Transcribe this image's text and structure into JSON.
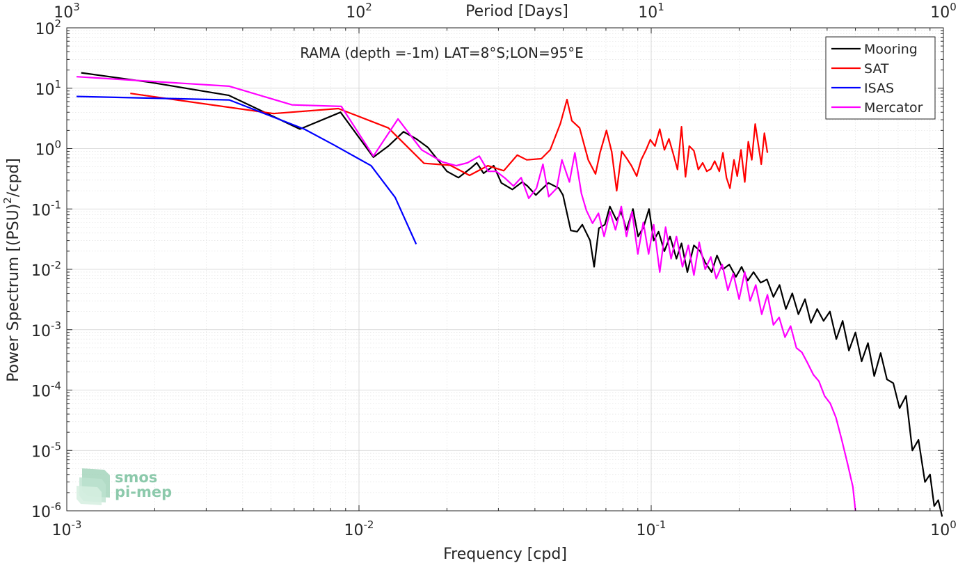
{
  "chart_data": {
    "type": "line",
    "title": "RAMA (depth =-1m) LAT=8°S;LON=95°E",
    "xlabel": "Frequency [cpd]",
    "ylabel": "Power Spectrum [(PSU)²/cpd]",
    "ylabel_parts": [
      "Power Spectrum [(PSU)",
      "2",
      "/cpd]"
    ],
    "top_xlabel": "Period [Days]",
    "xscale": "log",
    "yscale": "log",
    "xlim": [
      0.001,
      1
    ],
    "ylim": [
      1e-06,
      100
    ],
    "grid": true,
    "legend_position": "top-right",
    "x_ticks": [
      {
        "base": "10",
        "exp": "-3",
        "value": 0.001
      },
      {
        "base": "10",
        "exp": "-2",
        "value": 0.01
      },
      {
        "base": "10",
        "exp": "-1",
        "value": 0.1
      },
      {
        "base": "10",
        "exp": "0",
        "value": 1
      }
    ],
    "top_x_ticks": [
      {
        "base": "10",
        "exp": "3",
        "value": 0.001
      },
      {
        "base": "10",
        "exp": "2",
        "value": 0.01
      },
      {
        "base": "10",
        "exp": "1",
        "value": 0.1
      },
      {
        "base": "10",
        "exp": "0",
        "value": 1
      }
    ],
    "y_ticks": [
      {
        "base": "10",
        "exp": "2",
        "value": 100
      },
      {
        "base": "10",
        "exp": "1",
        "value": 10
      },
      {
        "base": "10",
        "exp": "0",
        "value": 1
      },
      {
        "base": "10",
        "exp": "-1",
        "value": 0.1
      },
      {
        "base": "10",
        "exp": "-2",
        "value": 0.01
      },
      {
        "base": "10",
        "exp": "-3",
        "value": 0.001
      },
      {
        "base": "10",
        "exp": "-4",
        "value": 0.0001
      },
      {
        "base": "10",
        "exp": "-5",
        "value": 1e-05
      },
      {
        "base": "10",
        "exp": "-6",
        "value": 1e-06
      }
    ],
    "series": [
      {
        "name": "Mooring",
        "color": "#000000",
        "x": [
          0.00112,
          0.00193,
          0.00359,
          0.00628,
          0.00865,
          0.0112,
          0.0126,
          0.0142,
          0.0157,
          0.0172,
          0.02,
          0.0219,
          0.0242,
          0.0253,
          0.0267,
          0.0289,
          0.0307,
          0.0335,
          0.0362,
          0.0377,
          0.0403,
          0.0421,
          0.0445,
          0.0483,
          0.0499,
          0.0531,
          0.0558,
          0.0581,
          0.0618,
          0.0638,
          0.0662,
          0.0694,
          0.0722,
          0.0761,
          0.079,
          0.0823,
          0.0866,
          0.0902,
          0.0941,
          0.0983,
          0.102,
          0.106,
          0.111,
          0.116,
          0.122,
          0.127,
          0.133,
          0.14,
          0.147,
          0.153,
          0.161,
          0.168,
          0.176,
          0.185,
          0.195,
          0.204,
          0.214,
          0.224,
          0.237,
          0.249,
          0.262,
          0.275,
          0.289,
          0.304,
          0.319,
          0.336,
          0.352,
          0.37,
          0.389,
          0.409,
          0.43,
          0.452,
          0.475,
          0.5,
          0.525,
          0.552,
          0.58,
          0.61,
          0.641,
          0.674,
          0.708,
          0.745,
          0.783,
          0.822,
          0.865,
          0.9,
          0.93,
          0.96,
          0.99
        ],
        "y": [
          18.0,
          12.5,
          7.6,
          2.1,
          4.0,
          0.72,
          1.1,
          1.9,
          1.45,
          1.05,
          0.42,
          0.33,
          0.48,
          0.58,
          0.39,
          0.52,
          0.27,
          0.21,
          0.28,
          0.24,
          0.17,
          0.21,
          0.27,
          0.22,
          0.17,
          0.044,
          0.042,
          0.055,
          0.03,
          0.011,
          0.048,
          0.055,
          0.11,
          0.065,
          0.09,
          0.045,
          0.1,
          0.035,
          0.05,
          0.1,
          0.03,
          0.042,
          0.02,
          0.035,
          0.015,
          0.027,
          0.009,
          0.025,
          0.02,
          0.013,
          0.009,
          0.017,
          0.01,
          0.012,
          0.0075,
          0.011,
          0.0065,
          0.009,
          0.006,
          0.0068,
          0.0035,
          0.0055,
          0.0022,
          0.004,
          0.0018,
          0.0032,
          0.0013,
          0.0022,
          0.0014,
          0.002,
          0.0007,
          0.0014,
          0.00045,
          0.0009,
          0.0003,
          0.0006,
          0.00017,
          0.00041,
          0.00015,
          0.00013,
          5e-05,
          8e-05,
          1e-05,
          1.5e-05,
          3e-06,
          4e-06,
          1.2e-06,
          1.5e-06,
          8e-07
        ]
      },
      {
        "name": "SAT",
        "color": "#ff0000",
        "x": [
          0.00165,
          0.0051,
          0.0085,
          0.0126,
          0.0167,
          0.0205,
          0.0239,
          0.0276,
          0.0313,
          0.0348,
          0.0375,
          0.0421,
          0.0451,
          0.0489,
          0.0515,
          0.0535,
          0.0569,
          0.0609,
          0.0645,
          0.0668,
          0.0703,
          0.0733,
          0.0762,
          0.0793,
          0.0826,
          0.0856,
          0.0892,
          0.0924,
          0.096,
          0.0993,
          0.103,
          0.107,
          0.111,
          0.115,
          0.119,
          0.123,
          0.127,
          0.131,
          0.135,
          0.14,
          0.145,
          0.15,
          0.155,
          0.16,
          0.165,
          0.171,
          0.176,
          0.181,
          0.186,
          0.192,
          0.197,
          0.203,
          0.209,
          0.215,
          0.221,
          0.227,
          0.233,
          0.238,
          0.244,
          0.25
        ],
        "y": [
          8.2,
          3.8,
          4.6,
          2.2,
          0.57,
          0.53,
          0.36,
          0.52,
          0.43,
          0.78,
          0.65,
          0.68,
          0.95,
          2.6,
          6.5,
          2.9,
          2.2,
          0.65,
          0.38,
          0.85,
          2.0,
          0.88,
          0.2,
          0.9,
          0.68,
          0.52,
          0.35,
          0.65,
          0.95,
          1.4,
          1.1,
          2.1,
          0.95,
          1.45,
          0.82,
          0.45,
          2.3,
          0.34,
          1.1,
          0.92,
          0.45,
          0.58,
          0.42,
          0.46,
          0.62,
          0.42,
          0.85,
          0.33,
          0.22,
          0.65,
          0.35,
          0.95,
          0.28,
          1.3,
          0.65,
          2.55,
          1.1,
          0.55,
          1.8,
          0.85
        ]
      },
      {
        "name": "ISAS",
        "color": "#0000ff",
        "x": [
          0.00108,
          0.0036,
          0.0065,
          0.0082,
          0.011,
          0.0133,
          0.0157
        ],
        "y": [
          7.3,
          6.4,
          2.1,
          1.15,
          0.52,
          0.155,
          0.026
        ]
      },
      {
        "name": "Mercator",
        "color": "#ff00ff",
        "x": [
          0.00108,
          0.0036,
          0.0059,
          0.0087,
          0.0112,
          0.0136,
          0.0164,
          0.0193,
          0.0215,
          0.0235,
          0.0258,
          0.0277,
          0.0295,
          0.0317,
          0.0338,
          0.0359,
          0.0381,
          0.0405,
          0.0426,
          0.0446,
          0.0475,
          0.0495,
          0.0525,
          0.0548,
          0.0577,
          0.06,
          0.063,
          0.066,
          0.069,
          0.0723,
          0.0755,
          0.079,
          0.0823,
          0.086,
          0.09,
          0.094,
          0.098,
          0.102,
          0.107,
          0.112,
          0.117,
          0.122,
          0.128,
          0.134,
          0.14,
          0.146,
          0.153,
          0.16,
          0.167,
          0.175,
          0.183,
          0.191,
          0.2,
          0.209,
          0.218,
          0.228,
          0.239,
          0.25,
          0.262,
          0.274,
          0.287,
          0.3,
          0.314,
          0.328,
          0.343,
          0.359,
          0.375,
          0.392,
          0.41,
          0.429,
          0.449,
          0.47,
          0.49,
          0.5
        ],
        "y": [
          15.5,
          10.8,
          5.3,
          5.0,
          0.75,
          3.1,
          0.95,
          0.6,
          0.52,
          0.58,
          0.75,
          0.42,
          0.42,
          0.32,
          0.24,
          0.33,
          0.15,
          0.22,
          0.55,
          0.16,
          0.22,
          0.65,
          0.28,
          0.85,
          0.18,
          0.095,
          0.058,
          0.085,
          0.035,
          0.09,
          0.045,
          0.11,
          0.035,
          0.09,
          0.018,
          0.06,
          0.018,
          0.055,
          0.009,
          0.05,
          0.015,
          0.035,
          0.011,
          0.025,
          0.008,
          0.028,
          0.01,
          0.016,
          0.007,
          0.012,
          0.0045,
          0.0085,
          0.0032,
          0.009,
          0.003,
          0.0055,
          0.0018,
          0.0038,
          0.0012,
          0.0016,
          0.00075,
          0.00115,
          0.0005,
          0.00042,
          0.00028,
          0.00018,
          0.00014,
          8e-05,
          6e-05,
          3.5e-05,
          1.5e-05,
          6e-06,
          2.5e-06,
          1e-06
        ]
      }
    ]
  },
  "logo": {
    "line1": "smos",
    "line2": "pi-mep"
  }
}
